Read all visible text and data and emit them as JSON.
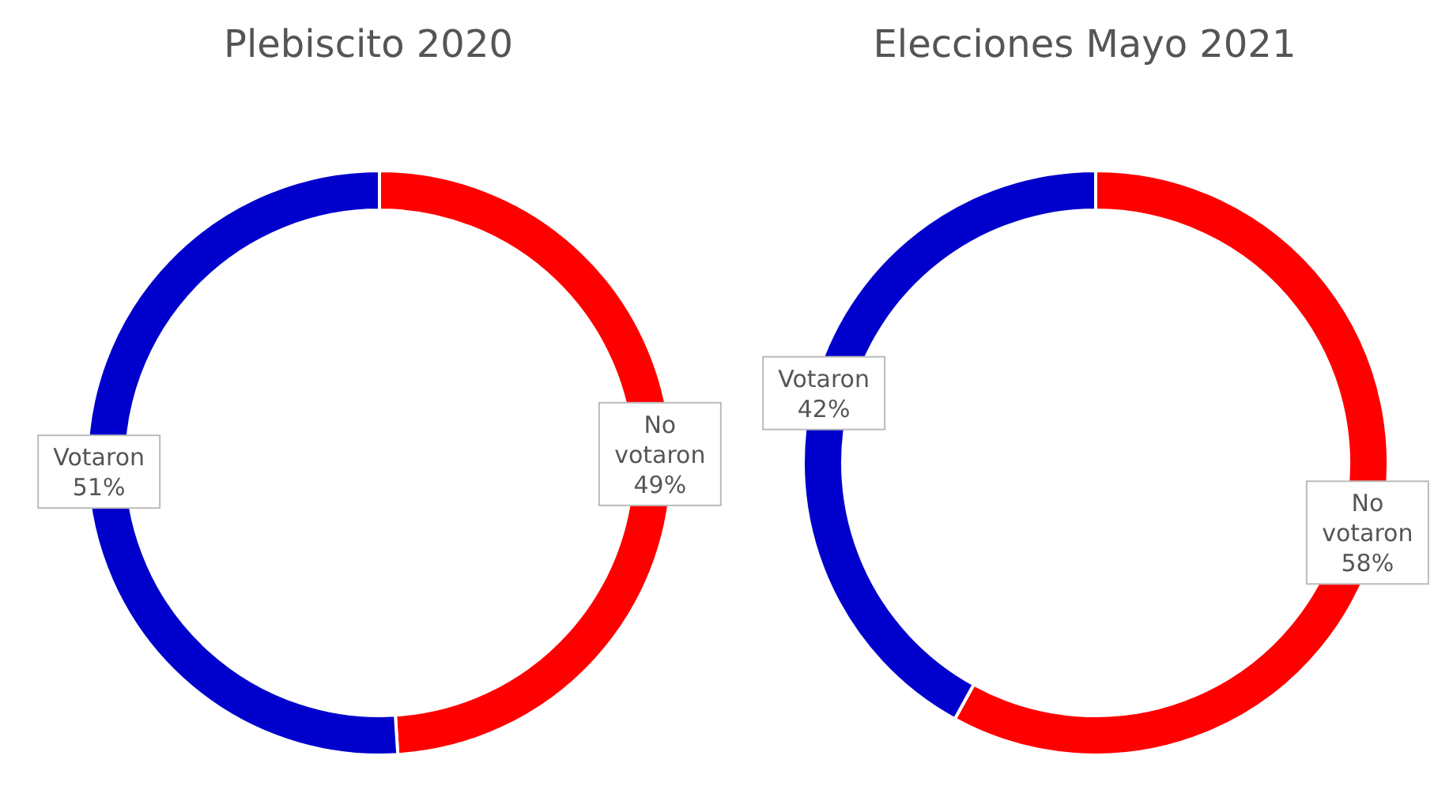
{
  "chart_data": [
    {
      "type": "donut",
      "title": "Plebiscito 2020",
      "categories": [
        "No votaron",
        "Votaron"
      ],
      "values": [
        49,
        51
      ],
      "value_labels": [
        "49%",
        "51%"
      ],
      "colors": [
        "#ff0000",
        "#0000cc"
      ],
      "legend": false
    },
    {
      "type": "donut",
      "title": "Elecciones Mayo 2021",
      "categories": [
        "No votaron",
        "Votaron"
      ],
      "values": [
        58,
        42
      ],
      "value_labels": [
        "58%",
        "42%"
      ],
      "colors": [
        "#ff0000",
        "#0000cc"
      ],
      "legend": false
    }
  ]
}
